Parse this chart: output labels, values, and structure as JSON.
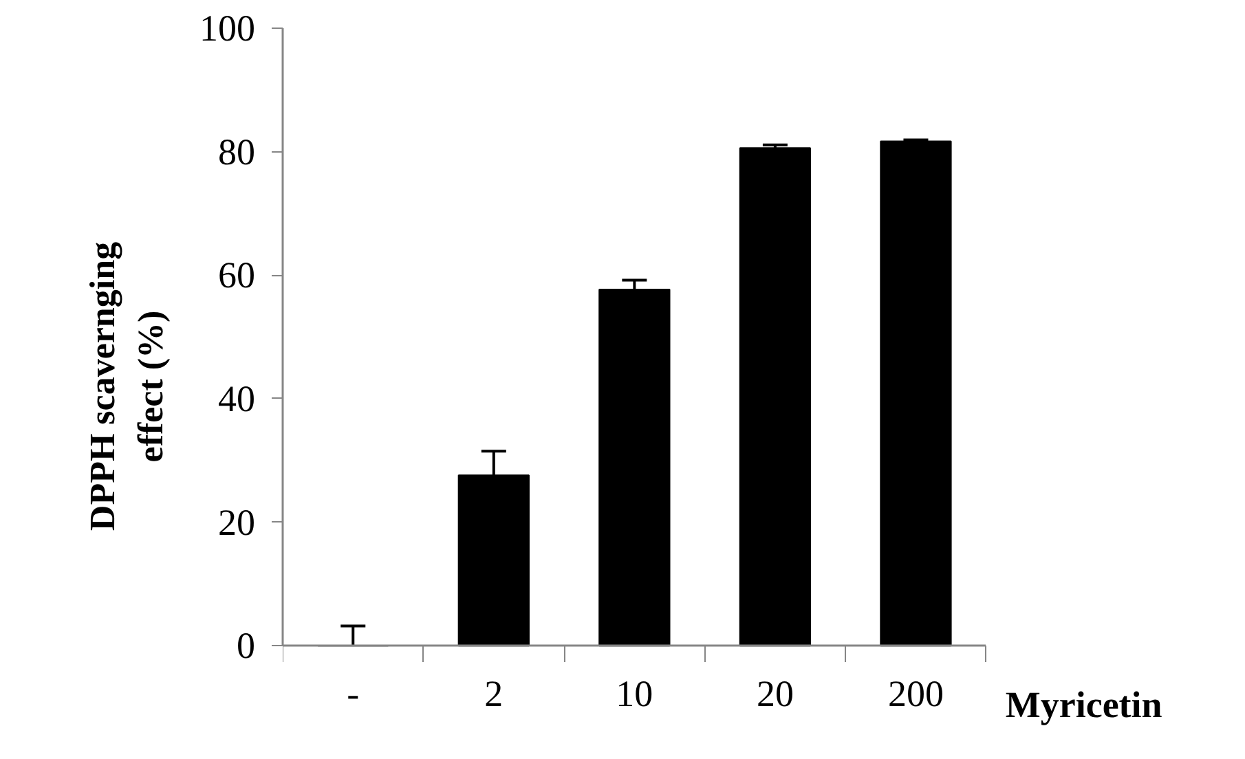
{
  "chart_data": {
    "type": "bar",
    "ylabel": "DPPH scavernging\neffect (%)",
    "xlabel": "Myricetin",
    "categories": [
      "-",
      "2",
      "10",
      "20",
      "200"
    ],
    "values": [
      0,
      27.6,
      57.7,
      80.6,
      81.7
    ],
    "errors": [
      [
        0,
        3.2
      ],
      [
        27.6,
        31.5
      ],
      [
        57.7,
        59.2
      ],
      [
        80.6,
        81.1
      ],
      [
        81.7,
        81.9
      ]
    ],
    "color": "#000000",
    "ylim": [
      0,
      100
    ],
    "yticks": [
      0,
      20,
      40,
      60,
      80,
      100
    ],
    "grid": false
  }
}
